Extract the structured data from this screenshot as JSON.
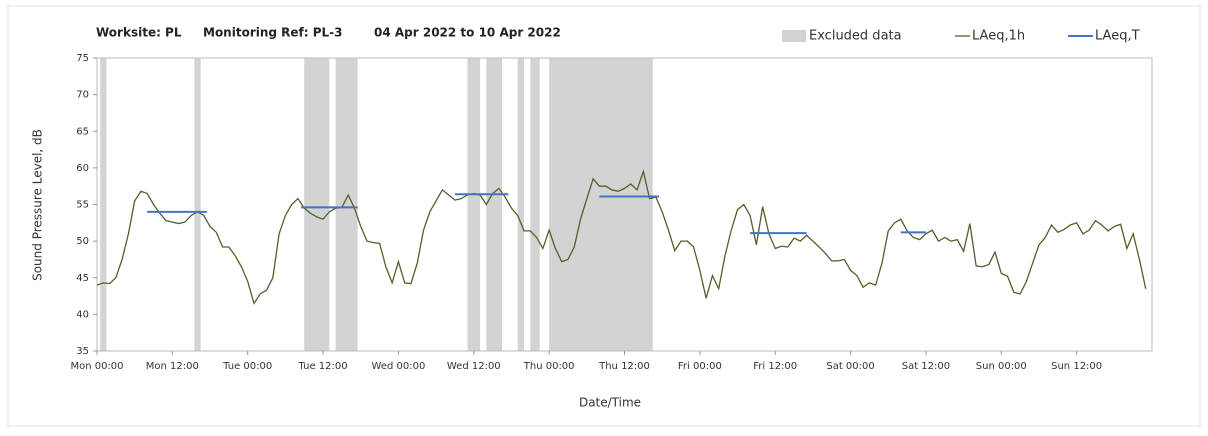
{
  "chart_data": {
    "type": "line",
    "title": [
      "Worksite: PL",
      "Monitoring Ref: PL-3",
      "04 Apr 2022 to 10 Apr 2022"
    ],
    "xlabel": "Date/Time",
    "ylabel": "Sound Pressure Level, dB",
    "xlim": [
      0,
      168
    ],
    "xticks": [
      {
        "value": 0,
        "label": "Mon 00:00"
      },
      {
        "value": 12,
        "label": "Mon 12:00"
      },
      {
        "value": 24,
        "label": "Tue 00:00"
      },
      {
        "value": 36,
        "label": "Tue 12:00"
      },
      {
        "value": 48,
        "label": "Wed 00:00"
      },
      {
        "value": 60,
        "label": "Wed 12:00"
      },
      {
        "value": 72,
        "label": "Thu 00:00"
      },
      {
        "value": 84,
        "label": "Thu 12:00"
      },
      {
        "value": 96,
        "label": "Fri 00:00"
      },
      {
        "value": 108,
        "label": "Fri 12:00"
      },
      {
        "value": 120,
        "label": "Sat 00:00"
      },
      {
        "value": 132,
        "label": "Sat 12:00"
      },
      {
        "value": 144,
        "label": "Sun 00:00"
      },
      {
        "value": 156,
        "label": "Sun 12:00"
      }
    ],
    "ylim": [
      35,
      75
    ],
    "yticks": [
      35,
      40,
      45,
      50,
      55,
      60,
      65,
      70,
      75
    ],
    "x": [
      0,
      1,
      2,
      3,
      4,
      5,
      6,
      7,
      8,
      9,
      10,
      11,
      12,
      13,
      14,
      15,
      16,
      17,
      18,
      19,
      20,
      21,
      22,
      23,
      24,
      25,
      26,
      27,
      28,
      29,
      30,
      31,
      32,
      33,
      34,
      35,
      36,
      37,
      38,
      39,
      40,
      41,
      42,
      43,
      44,
      45,
      46,
      47,
      48,
      49,
      50,
      51,
      52,
      53,
      54,
      55,
      56,
      57,
      58,
      59,
      60,
      61,
      62,
      63,
      64,
      65,
      66,
      67,
      68,
      69,
      70,
      71,
      72,
      73,
      74,
      75,
      76,
      77,
      78,
      79,
      80,
      81,
      82,
      83,
      84,
      85,
      86,
      87,
      88,
      89,
      90,
      91,
      92,
      93,
      94,
      95,
      96,
      97,
      98,
      99,
      100,
      101,
      102,
      103,
      104,
      105,
      106,
      107,
      108,
      109,
      110,
      111,
      112,
      113,
      114,
      115,
      116,
      117,
      118,
      119,
      120,
      121,
      122,
      123,
      124,
      125,
      126,
      127,
      128,
      129,
      130,
      131,
      132,
      133,
      134,
      135,
      136,
      137,
      138,
      139,
      140,
      141,
      142,
      143,
      144,
      145,
      146,
      147,
      148,
      149,
      150,
      151,
      152,
      153,
      154,
      155,
      156,
      157,
      158,
      159,
      160,
      161,
      162,
      163,
      164,
      165,
      166,
      167
    ],
    "series": [
      {
        "name": "LAeq,1h",
        "color": "#4f6228",
        "values": [
          44,
          44.3,
          44.2,
          45,
          47.5,
          51,
          55.5,
          56.8,
          56.5,
          55,
          53.8,
          52.8,
          52.6,
          52.4,
          52.6,
          53.5,
          54,
          53.5,
          52,
          51.2,
          49.2,
          49.2,
          48,
          46.5,
          44.5,
          41.5,
          42.8,
          43.3,
          45,
          51,
          53.5,
          55,
          55.8,
          54.5,
          53.8,
          53.3,
          53,
          54,
          54.5,
          54.6,
          56.3,
          54.5,
          52,
          50,
          49.8,
          49.7,
          46.5,
          44.3,
          47.2,
          44.3,
          44.2,
          47,
          51.5,
          54,
          55.5,
          57,
          56.3,
          55.6,
          55.8,
          56.3,
          56.5,
          56.3,
          55,
          56.5,
          57.2,
          56,
          54.5,
          53.5,
          51.4,
          51.4,
          50.5,
          49,
          51.5,
          49,
          47.2,
          47.5,
          49.2,
          53,
          55.8,
          58.5,
          57.5,
          57.5,
          57,
          56.8,
          57.2,
          57.8,
          57,
          59.5,
          55.8,
          56,
          54,
          51.5,
          48.7,
          50,
          50,
          49.2,
          46,
          42.2,
          45.3,
          43.5,
          48,
          51.5,
          54.3,
          55,
          53.5,
          49.5,
          54.7,
          51,
          49,
          49.3,
          49.2,
          50.4,
          50,
          50.8,
          50,
          49.2,
          48.3,
          47.3,
          47.3,
          47.5,
          46,
          45.3,
          43.7,
          44.3,
          44,
          47,
          51.4,
          52.5,
          53,
          51.4,
          50.5,
          50.2,
          51,
          51.5,
          50,
          50.5,
          50,
          50.2,
          48.6,
          52.4,
          46.6,
          46.5,
          46.8,
          48.5,
          45.6,
          45.2,
          43,
          42.8,
          44.5,
          47,
          49.5,
          50.5,
          52.2,
          51.2,
          51.6,
          52.2,
          52.5,
          51,
          51.5,
          52.8,
          52.2,
          51.4,
          52,
          52.3,
          49,
          51,
          47.5,
          43.5
        ]
      }
    ],
    "excluded": {
      "name": "Excluded data",
      "color": "#d3d3d3",
      "start": [
        0.5,
        15.5,
        33,
        38,
        59,
        62,
        67,
        69,
        72
      ],
      "end": [
        1.5,
        16.5,
        37,
        41.5,
        61,
        64.5,
        68,
        70.5,
        88.5
      ]
    },
    "period_mean": {
      "name": "LAeq,T",
      "color": "#4472c4",
      "x0": [
        8,
        32.5,
        57,
        80,
        104,
        128
      ],
      "x1": [
        17.5,
        41.5,
        65.5,
        89.5,
        113,
        132
      ],
      "values": [
        54,
        54.6,
        56.4,
        56.1,
        51.1,
        51.2
      ]
    }
  }
}
